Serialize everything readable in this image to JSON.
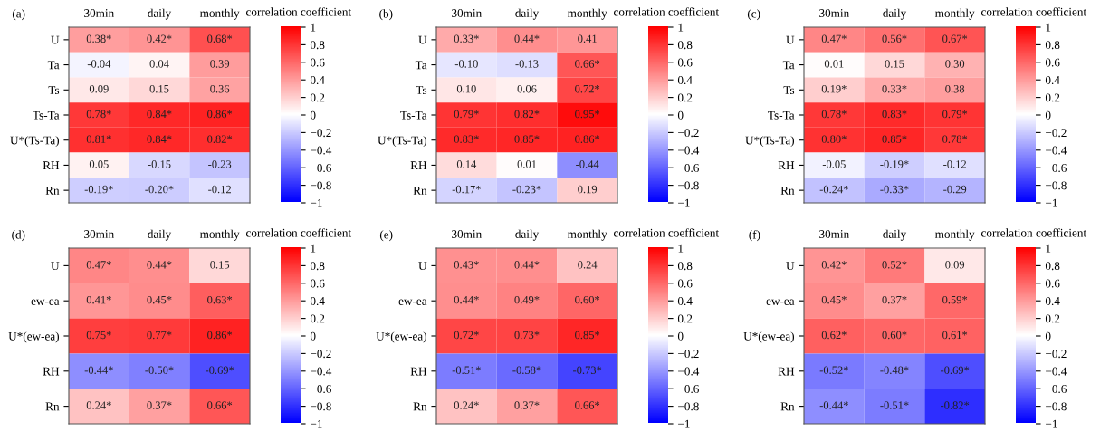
{
  "chart_data": [
    {
      "type": "heatmap",
      "title": "(a)",
      "clabel": "correlation coefficient",
      "categories": [
        "30min",
        "daily",
        "monthly"
      ],
      "y_categories": [
        "U",
        "Ta",
        "Ts",
        "Ts-Ta",
        "U*(Ts-Ta)",
        "RH",
        "Rn"
      ],
      "cells": [
        [
          0.38,
          0.42,
          0.68
        ],
        [
          -0.04,
          0.04,
          0.39
        ],
        [
          0.09,
          0.15,
          0.36
        ],
        [
          0.78,
          0.84,
          0.86
        ],
        [
          0.81,
          0.84,
          0.82
        ],
        [
          0.05,
          -0.15,
          -0.23
        ],
        [
          -0.19,
          -0.2,
          -0.12
        ]
      ],
      "cell_labels": [
        [
          "0.38*",
          "0.42*",
          "0.68*"
        ],
        [
          "-0.04",
          "0.04",
          "0.39"
        ],
        [
          "0.09",
          "0.15",
          "0.36"
        ],
        [
          "0.78*",
          "0.84*",
          "0.86*"
        ],
        [
          "0.81*",
          "0.84*",
          "0.82*"
        ],
        [
          "0.05",
          "-0.15",
          "-0.23"
        ],
        [
          "-0.19*",
          "-0.20*",
          "-0.12"
        ]
      ],
      "clim": [
        -1,
        1
      ],
      "cticks": [
        {
          "value": -1,
          "label": "−1"
        },
        {
          "value": -0.8,
          "label": "−0.8"
        },
        {
          "value": -0.6,
          "label": "−0.6"
        },
        {
          "value": -0.4,
          "label": "−0.4"
        },
        {
          "value": -0.2,
          "label": "−0.2"
        },
        0,
        0.2,
        0.4,
        0.6,
        0.8,
        1
      ]
    },
    {
      "type": "heatmap",
      "title": "(b)",
      "clabel": "correlation coefficient",
      "categories": [
        "30min",
        "daily",
        "monthly"
      ],
      "y_categories": [
        "U",
        "Ta",
        "Ts",
        "Ts-Ta",
        "U*(Ts-Ta)",
        "RH",
        "Rn"
      ],
      "cells": [
        [
          0.33,
          0.44,
          0.41
        ],
        [
          -0.1,
          -0.13,
          0.66
        ],
        [
          0.1,
          0.06,
          0.72
        ],
        [
          0.79,
          0.82,
          0.95
        ],
        [
          0.83,
          0.85,
          0.86
        ],
        [
          0.14,
          0.01,
          -0.44
        ],
        [
          -0.17,
          -0.23,
          0.19
        ]
      ],
      "cell_labels": [
        [
          "0.33*",
          "0.44*",
          "0.41"
        ],
        [
          "-0.10",
          "-0.13",
          "0.66*"
        ],
        [
          "0.10",
          "0.06",
          "0.72*"
        ],
        [
          "0.79*",
          "0.82*",
          "0.95*"
        ],
        [
          "0.83*",
          "0.85*",
          "0.86*"
        ],
        [
          "0.14",
          "0.01",
          "-0.44"
        ],
        [
          "-0.17*",
          "-0.23*",
          "0.19"
        ]
      ],
      "clim": [
        -1,
        1
      ],
      "cticks": [
        {
          "value": -1,
          "label": "−1"
        },
        {
          "value": -0.8,
          "label": "−0.8"
        },
        {
          "value": -0.6,
          "label": "−0.6"
        },
        {
          "value": -0.4,
          "label": "−0.4"
        },
        {
          "value": -0.2,
          "label": "−0.2"
        },
        0,
        0.2,
        0.4,
        0.6,
        0.8,
        1
      ]
    },
    {
      "type": "heatmap",
      "title": "(c)",
      "clabel": "correlation coefficient",
      "categories": [
        "30min",
        "daily",
        "monthly"
      ],
      "y_categories": [
        "U",
        "Ta",
        "Ts",
        "Ts-Ta",
        "U*(Ts-Ta)",
        "RH",
        "Rn"
      ],
      "cells": [
        [
          0.47,
          0.56,
          0.67
        ],
        [
          0.01,
          0.15,
          0.3
        ],
        [
          0.19,
          0.33,
          0.38
        ],
        [
          0.78,
          0.83,
          0.79
        ],
        [
          0.8,
          0.85,
          0.78
        ],
        [
          -0.05,
          -0.19,
          -0.12
        ],
        [
          -0.24,
          -0.33,
          -0.29
        ]
      ],
      "cell_labels": [
        [
          "0.47*",
          "0.56*",
          "0.67*"
        ],
        [
          "0.01",
          "0.15",
          "0.30"
        ],
        [
          "0.19*",
          "0.33*",
          "0.38"
        ],
        [
          "0.78*",
          "0.83*",
          "0.79*"
        ],
        [
          "0.80*",
          "0.85*",
          "0.78*"
        ],
        [
          "-0.05",
          "-0.19*",
          "-0.12"
        ],
        [
          "-0.24*",
          "-0.33*",
          "-0.29"
        ]
      ],
      "clim": [
        -1,
        1
      ],
      "cticks": [
        {
          "value": -1,
          "label": "−1"
        },
        {
          "value": -0.8,
          "label": "−0.8"
        },
        {
          "value": -0.6,
          "label": "−0.6"
        },
        {
          "value": -0.4,
          "label": "−0.4"
        },
        {
          "value": -0.2,
          "label": "−0.2"
        },
        0,
        0.2,
        0.4,
        0.6,
        0.8,
        1
      ]
    },
    {
      "type": "heatmap",
      "title": "(d)",
      "clabel": "correlation coefficient",
      "categories": [
        "30min",
        "daily",
        "monthly"
      ],
      "y_categories": [
        "U",
        "ew-ea",
        "U*(ew-ea)",
        "RH",
        "Rn"
      ],
      "cells": [
        [
          0.47,
          0.44,
          0.15
        ],
        [
          0.41,
          0.45,
          0.63
        ],
        [
          0.75,
          0.77,
          0.86
        ],
        [
          -0.44,
          -0.5,
          -0.69
        ],
        [
          0.24,
          0.37,
          0.66
        ]
      ],
      "cell_labels": [
        [
          "0.47*",
          "0.44*",
          "0.15"
        ],
        [
          "0.41*",
          "0.45*",
          "0.63*"
        ],
        [
          "0.75*",
          "0.77*",
          "0.86*"
        ],
        [
          "-0.44*",
          "-0.50*",
          "-0.69*"
        ],
        [
          "0.24*",
          "0.37*",
          "0.66*"
        ]
      ],
      "clim": [
        -1,
        1
      ],
      "cticks": [
        {
          "value": -1,
          "label": "−1"
        },
        {
          "value": -0.8,
          "label": "−0.8"
        },
        {
          "value": -0.6,
          "label": "−0.6"
        },
        {
          "value": -0.4,
          "label": "−0.4"
        },
        {
          "value": -0.2,
          "label": "−0.2"
        },
        0,
        0.2,
        0.4,
        0.6,
        0.8,
        1
      ]
    },
    {
      "type": "heatmap",
      "title": "(e)",
      "clabel": "correlation coefficient",
      "categories": [
        "30min",
        "daily",
        "monthly"
      ],
      "y_categories": [
        "U",
        "ew-ea",
        "U*(ew-ea)",
        "RH",
        "Rn"
      ],
      "cells": [
        [
          0.43,
          0.44,
          0.24
        ],
        [
          0.44,
          0.49,
          0.6
        ],
        [
          0.72,
          0.73,
          0.85
        ],
        [
          -0.51,
          -0.58,
          -0.73
        ],
        [
          0.24,
          0.37,
          0.66
        ]
      ],
      "cell_labels": [
        [
          "0.43*",
          "0.44*",
          "0.24"
        ],
        [
          "0.44*",
          "0.49*",
          "0.60*"
        ],
        [
          "0.72*",
          "0.73*",
          "0.85*"
        ],
        [
          "-0.51*",
          "-0.58*",
          "-0.73*"
        ],
        [
          "0.24*",
          "0.37*",
          "0.66*"
        ]
      ],
      "clim": [
        -1,
        1
      ],
      "cticks": [
        {
          "value": -1,
          "label": "−1"
        },
        {
          "value": -0.8,
          "label": "−0.8"
        },
        {
          "value": -0.6,
          "label": "−0.6"
        },
        {
          "value": -0.4,
          "label": "−0.4"
        },
        {
          "value": -0.2,
          "label": "−0.2"
        },
        0,
        0.2,
        0.4,
        0.6,
        0.8,
        1
      ]
    },
    {
      "type": "heatmap",
      "title": "(f)",
      "clabel": "correlation coefficient",
      "categories": [
        "30min",
        "daily",
        "monthly"
      ],
      "y_categories": [
        "U",
        "ew-ea",
        "U*(ew-ea)",
        "RH",
        "Rn"
      ],
      "cells": [
        [
          0.42,
          0.52,
          0.09
        ],
        [
          0.45,
          0.37,
          0.59
        ],
        [
          0.62,
          0.6,
          0.61
        ],
        [
          -0.52,
          -0.48,
          -0.69
        ],
        [
          -0.44,
          -0.51,
          -0.82
        ]
      ],
      "cell_labels": [
        [
          "0.42*",
          "0.52*",
          "0.09"
        ],
        [
          "0.45*",
          "0.37*",
          "0.59*"
        ],
        [
          "0.62*",
          "0.60*",
          "0.61*"
        ],
        [
          "-0.52*",
          "-0.48*",
          "-0.69*"
        ],
        [
          "-0.44*",
          "-0.51*",
          "-0.82*"
        ]
      ],
      "clim": [
        -1,
        1
      ],
      "cticks": [
        {
          "value": -1,
          "label": "−1"
        },
        {
          "value": -0.8,
          "label": "−0.8"
        },
        {
          "value": -0.6,
          "label": "−0.6"
        },
        {
          "value": -0.4,
          "label": "−0.4"
        },
        {
          "value": -0.2,
          "label": "−0.2"
        },
        0,
        0.2,
        0.4,
        0.6,
        0.8,
        1
      ]
    }
  ]
}
